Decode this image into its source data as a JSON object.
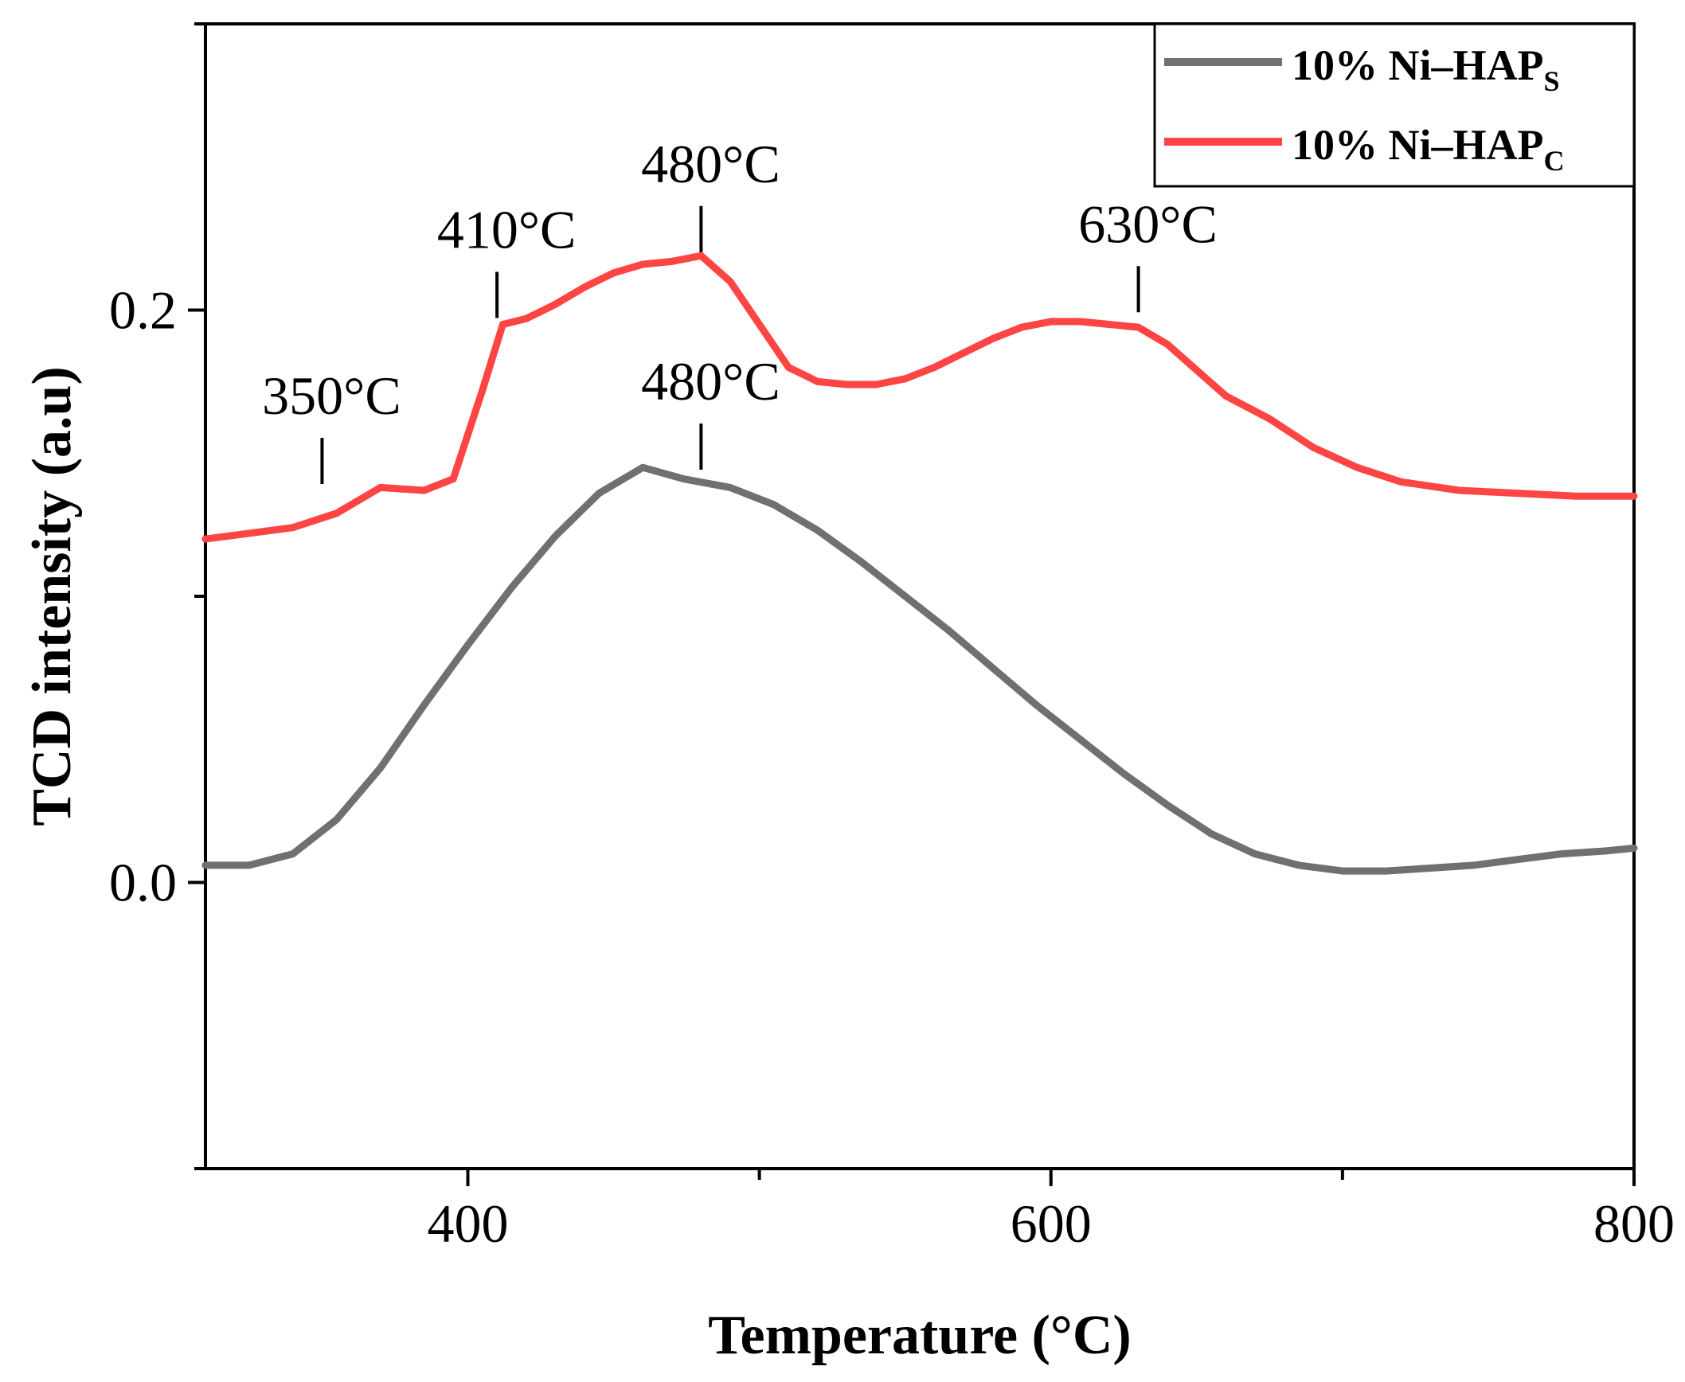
{
  "chart_data": {
    "type": "line",
    "xlabel": "Temperature (°C)",
    "ylabel": "TCD intensity (a.u)",
    "xlim": [
      310,
      800
    ],
    "ylim": [
      -0.1,
      0.3
    ],
    "x_ticks": [
      {
        "value": 400,
        "label": "400"
      },
      {
        "value": 600,
        "label": "600"
      },
      {
        "value": 800,
        "label": "800"
      }
    ],
    "x_minor_ticks": [
      500,
      700
    ],
    "y_ticks": [
      {
        "value": 0.0,
        "label": "0.0"
      },
      {
        "value": 0.2,
        "label": "0.2"
      }
    ],
    "y_minor_ticks": [
      -0.1,
      0.1,
      0.3
    ],
    "legend_position": "top-right",
    "series": [
      {
        "name": "10% Ni–HAP",
        "subscript": "S",
        "color": "#707070",
        "x": [
          310,
          325,
          340,
          355,
          370,
          385,
          400,
          415,
          430,
          445,
          460,
          474,
          490,
          505,
          520,
          535,
          550,
          565,
          580,
          595,
          610,
          625,
          640,
          655,
          670,
          685,
          700,
          715,
          730,
          745,
          760,
          775,
          790,
          800
        ],
        "y": [
          0.006,
          0.006,
          0.01,
          0.022,
          0.04,
          0.062,
          0.083,
          0.103,
          0.121,
          0.136,
          0.145,
          0.141,
          0.138,
          0.132,
          0.123,
          0.112,
          0.1,
          0.088,
          0.075,
          0.062,
          0.05,
          0.038,
          0.027,
          0.017,
          0.01,
          0.006,
          0.004,
          0.004,
          0.005,
          0.006,
          0.008,
          0.01,
          0.011,
          0.012
        ]
      },
      {
        "name": "10% Ni–HAP",
        "subscript": "C",
        "color": "#ff4444",
        "x": [
          310,
          325,
          340,
          355,
          370,
          385,
          395,
          405,
          412,
          420,
          430,
          440,
          450,
          460,
          470,
          480,
          490,
          500,
          510,
          520,
          530,
          540,
          550,
          560,
          570,
          580,
          590,
          600,
          610,
          620,
          630,
          640,
          650,
          660,
          675,
          690,
          705,
          720,
          740,
          760,
          780,
          800
        ],
        "y": [
          0.12,
          0.122,
          0.124,
          0.129,
          0.138,
          0.137,
          0.141,
          0.172,
          0.195,
          0.197,
          0.202,
          0.208,
          0.213,
          0.216,
          0.217,
          0.219,
          0.21,
          0.195,
          0.18,
          0.175,
          0.174,
          0.174,
          0.176,
          0.18,
          0.185,
          0.19,
          0.194,
          0.196,
          0.196,
          0.195,
          0.194,
          0.188,
          0.179,
          0.17,
          0.162,
          0.152,
          0.145,
          0.14,
          0.137,
          0.136,
          0.135,
          0.135
        ]
      }
    ],
    "annotations": [
      {
        "text": "350°C",
        "x": 350,
        "y": 0.137
      },
      {
        "text": "410°C",
        "x": 410,
        "y": 0.195
      },
      {
        "text": "480°C",
        "x": 480,
        "y": 0.218
      },
      {
        "text": "630°C",
        "x": 630,
        "y": 0.197
      },
      {
        "text": "480°C",
        "x": 480,
        "y": 0.142
      }
    ]
  }
}
